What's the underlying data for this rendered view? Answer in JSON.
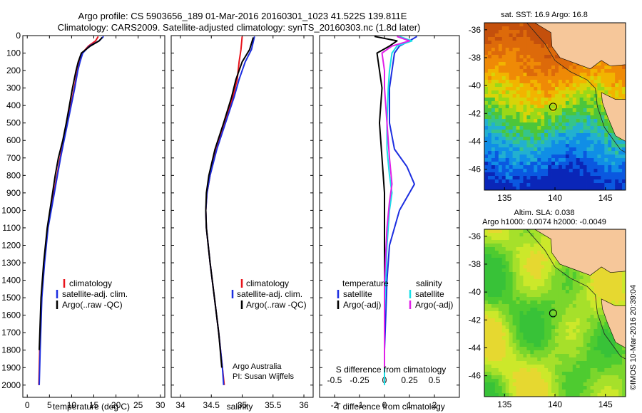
{
  "header": {
    "title": "Argo profile: CS 5903656_189 01-Mar-2016 20160301_1023 41.522S 139.811E",
    "subtitle": "Climatology: CARS2009. Satellite-adjusted climatology: synTS_20160303.nc (1.8d later)"
  },
  "colors": {
    "climatology": "#e8141c",
    "satellite": "#1c2ee0",
    "argo": "#000000",
    "cyan": "#18e0e8",
    "magenta": "#e020e8"
  },
  "chart_data": [
    {
      "type": "line",
      "xlabel": "temperature (deg C)",
      "ylabel": "",
      "xlim": [
        -1,
        31
      ],
      "ylim": [
        2070,
        0
      ],
      "x_ticks": [
        0,
        5,
        10,
        15,
        20,
        25,
        30
      ],
      "y_ticks": [
        0,
        100,
        200,
        300,
        400,
        500,
        600,
        700,
        800,
        900,
        1000,
        1100,
        1200,
        1300,
        1400,
        1500,
        1600,
        1700,
        1800,
        1900,
        2000
      ],
      "legend": [
        "climatology",
        "satellite-adj. clim.",
        "Argo(..raw -QC)"
      ],
      "legend_position": "bottom-right",
      "series": [
        {
          "name": "climatology",
          "color": "#e8141c",
          "x": [
            16.0,
            15.4,
            13.8,
            12.4,
            11.8,
            11.3,
            10.6,
            9.8,
            9.0,
            8.2,
            7.4,
            6.7,
            6.0,
            4.6,
            3.8,
            3.2,
            2.8,
            2.6
          ],
          "y": [
            5,
            30,
            60,
            100,
            150,
            200,
            300,
            400,
            500,
            600,
            700,
            800,
            900,
            1100,
            1300,
            1500,
            1800,
            2000
          ]
        },
        {
          "name": "satellite-adj. clim.",
          "color": "#1c2ee0",
          "x": [
            17.2,
            16.2,
            14.0,
            12.5,
            11.9,
            11.4,
            10.7,
            9.9,
            9.1,
            8.3,
            7.5,
            6.8,
            6.1,
            4.7,
            3.9,
            3.3,
            2.9,
            2.7
          ],
          "y": [
            5,
            30,
            60,
            100,
            150,
            200,
            300,
            400,
            500,
            600,
            700,
            800,
            900,
            1100,
            1300,
            1500,
            1800,
            2000
          ]
        },
        {
          "name": "Argo(..raw -QC)",
          "color": "#000000",
          "x": [
            16.9,
            16.2,
            14.2,
            12.2,
            11.5,
            11.0,
            10.2,
            9.5,
            8.8,
            8.0,
            7.0,
            6.3,
            5.7,
            4.5,
            3.7,
            3.1,
            2.7
          ],
          "y": [
            10,
            30,
            60,
            100,
            150,
            200,
            300,
            400,
            500,
            600,
            700,
            800,
            900,
            1100,
            1300,
            1500,
            1800
          ]
        }
      ]
    },
    {
      "type": "line",
      "xlabel": "salinity",
      "xlim": [
        33.85,
        36.15
      ],
      "ylim": [
        2070,
        0
      ],
      "x_ticks": [
        34,
        34.5,
        35,
        35.5,
        36
      ],
      "legend": [
        "climatology",
        "satellite-adj. clim.",
        "Argo(..raw -QC)"
      ],
      "legend_position": "bottom-right",
      "annotation": [
        "Argo Australia",
        "PI: Susan Wijffels"
      ],
      "series": [
        {
          "name": "climatology",
          "color": "#e8141c",
          "x": [
            35.0,
            34.98,
            34.95,
            34.92,
            34.85,
            34.72,
            34.58,
            34.48,
            34.43,
            34.41,
            34.42,
            34.48,
            34.55,
            34.62,
            34.68,
            34.71
          ],
          "y": [
            5,
            80,
            150,
            250,
            350,
            500,
            650,
            800,
            900,
            1000,
            1100,
            1300,
            1500,
            1700,
            1900,
            2000
          ]
        },
        {
          "name": "satellite-adj. clim.",
          "color": "#1c2ee0",
          "x": [
            35.2,
            35.15,
            35.05,
            34.95,
            34.87,
            34.73,
            34.59,
            34.48,
            34.43,
            34.41,
            34.42,
            34.48,
            34.55,
            34.62,
            34.68,
            34.7
          ],
          "y": [
            5,
            80,
            150,
            250,
            350,
            500,
            650,
            800,
            900,
            1000,
            1100,
            1300,
            1500,
            1700,
            1900,
            2000
          ]
        },
        {
          "name": "Argo(..raw -QC)",
          "color": "#000000",
          "x": [
            35.18,
            35.12,
            35.0,
            34.9,
            34.83,
            34.7,
            34.56,
            34.46,
            34.42,
            34.41,
            34.42,
            34.48,
            34.55,
            34.62,
            34.67
          ],
          "y": [
            10,
            80,
            150,
            250,
            350,
            500,
            650,
            800,
            900,
            1000,
            1100,
            1300,
            1500,
            1700,
            1900
          ]
        }
      ]
    },
    {
      "type": "line",
      "xlabel": "T difference from climatology",
      "xlabel_top": "S difference from climatology",
      "xlim": [
        -2.6,
        3.0
      ],
      "ylim": [
        2070,
        0
      ],
      "x_ticks": [
        -2,
        -1,
        0,
        1,
        2
      ],
      "x_ticks_top": [
        -0.5,
        -0.25,
        0,
        0.25,
        0.5
      ],
      "legend_titles": [
        "temperature",
        "salinity"
      ],
      "legend": [
        "satellite",
        "Argo(-adj)",
        "satellite",
        "Argo(-adj)"
      ],
      "series": [
        {
          "name": "satellite",
          "group": "temperature",
          "color": "#1c2ee0",
          "x": [
            1.3,
            1.0,
            0.6,
            0.4,
            0.3,
            0.2,
            0.2,
            0.4,
            0.9,
            1.2,
            1.0,
            0.6,
            0.2,
            0.1,
            0.05,
            0.0,
            0.0
          ],
          "y": [
            5,
            30,
            60,
            100,
            200,
            300,
            500,
            650,
            750,
            850,
            900,
            1000,
            1200,
            1400,
            1600,
            1800,
            2000
          ]
        },
        {
          "name": "Argo(-adj)",
          "group": "temperature",
          "color": "#000000",
          "x": [
            -0.4,
            0.5,
            0.2,
            -0.3,
            -0.2,
            -0.1,
            -0.2,
            -0.1,
            0.0,
            0.0,
            0.0,
            0.0,
            0.0
          ],
          "y": [
            5,
            30,
            60,
            100,
            200,
            300,
            500,
            700,
            900,
            1100,
            1400,
            1700,
            1900
          ]
        },
        {
          "name": "satellite",
          "group": "salinity",
          "color": "#18e0e8",
          "x": [
            0.6,
            1.1,
            0.5,
            0.3,
            0.2,
            0.15,
            0.1,
            0.1,
            0.2,
            0.3,
            0.2,
            0.1,
            0.0,
            0.0
          ],
          "y": [
            5,
            30,
            60,
            100,
            200,
            300,
            500,
            650,
            800,
            900,
            1000,
            1200,
            1600,
            2000
          ]
        },
        {
          "name": "Argo(-adj)",
          "group": "salinity",
          "color": "#e020e8",
          "x": [
            0.5,
            1.0,
            0.3,
            -0.1,
            0.0,
            0.0,
            0.1,
            0.2,
            0.3,
            0.2,
            0.1,
            0.0,
            0.0
          ],
          "y": [
            5,
            30,
            60,
            100,
            200,
            300,
            500,
            700,
            850,
            950,
            1100,
            1400,
            1900
          ]
        }
      ]
    },
    {
      "type": "heatmap",
      "title": "sat. SST: 16.9 Argo: 16.8",
      "xlim": [
        133,
        147
      ],
      "ylim": [
        -47.5,
        -35.5
      ],
      "x_ticks": [
        135,
        140,
        145
      ],
      "y_ticks": [
        -36,
        -38,
        -40,
        -42,
        -44,
        -46
      ],
      "argo_position": {
        "lon": 139.811,
        "lat": -41.522
      }
    },
    {
      "type": "heatmap",
      "title": "Altim. SLA: 0.038",
      "subtitle": "Argo h1000: 0.0074 h2000: -0.0049",
      "xlim": [
        133,
        147
      ],
      "ylim": [
        -47.5,
        -35.5
      ],
      "x_ticks": [
        135,
        140,
        145
      ],
      "y_ticks": [
        -36,
        -38,
        -40,
        -42,
        -44,
        -46
      ],
      "argo_position": {
        "lon": 139.811,
        "lat": -41.522
      }
    }
  ],
  "footer": {
    "credit": "©IMOS 10-Mar-2016 20:39:04"
  }
}
